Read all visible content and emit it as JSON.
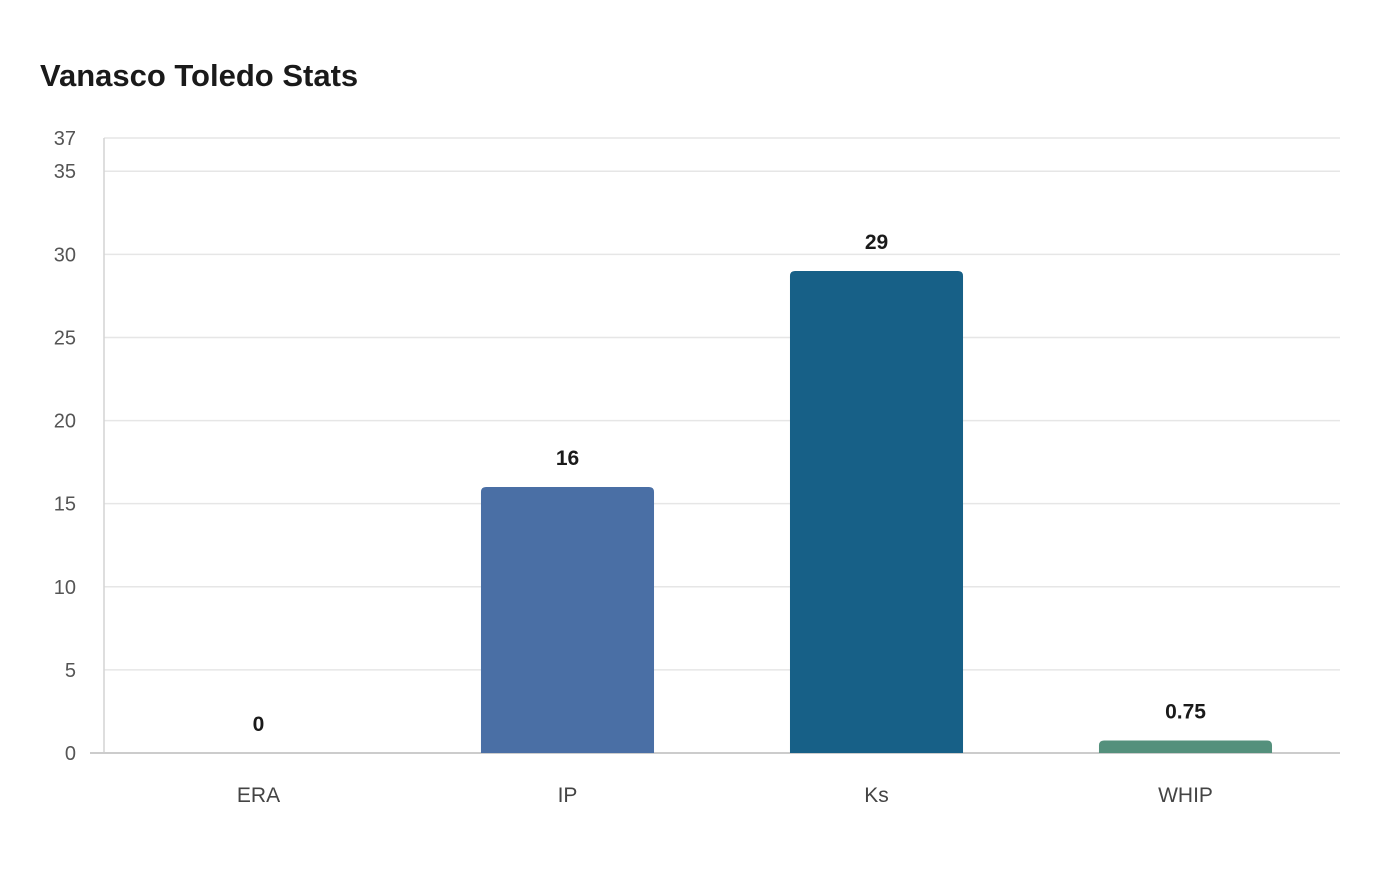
{
  "chart_data": {
    "type": "bar",
    "title": "Vanasco Toledo Stats",
    "xlabel": "",
    "ylabel": "",
    "categories": [
      "ERA",
      "IP",
      "Ks",
      "WHIP"
    ],
    "values": [
      0,
      16,
      29,
      0.75
    ],
    "data_labels": [
      "0",
      "16",
      "29",
      "0.75"
    ],
    "colors": [
      "#4a6fa5",
      "#4a6fa5",
      "#176087",
      "#54907c"
    ],
    "ylim": [
      0,
      37
    ],
    "yticks": [
      0,
      5,
      10,
      15,
      20,
      25,
      30,
      35,
      37
    ],
    "grid": true,
    "legend": "none"
  }
}
